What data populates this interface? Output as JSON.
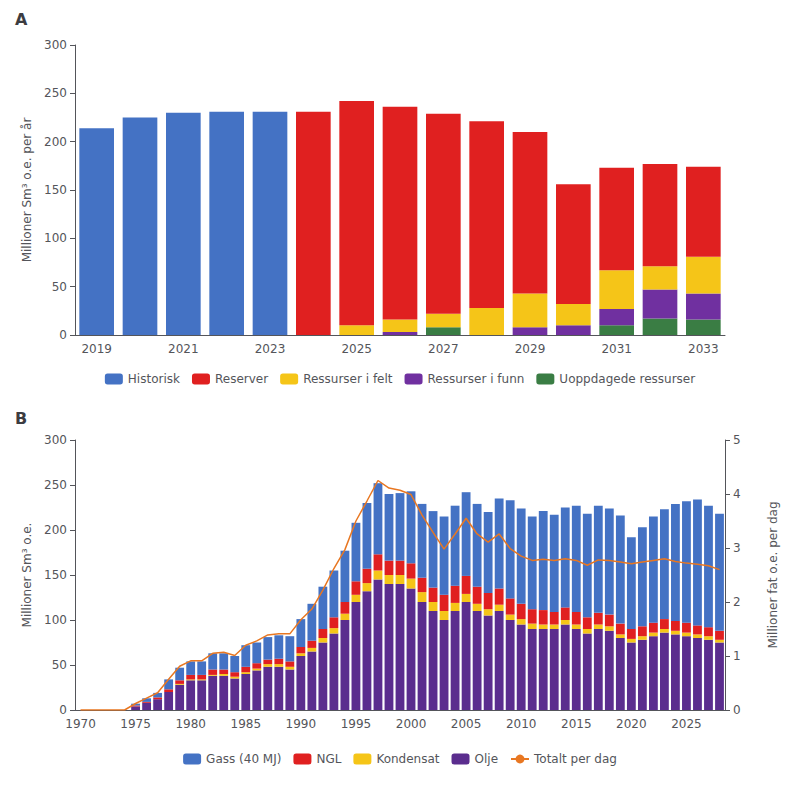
{
  "chart_data": [
    {
      "type": "bar",
      "title": "A",
      "categories": [
        "2019",
        null,
        "2021",
        null,
        "2023",
        null,
        "2025",
        null,
        "2027",
        null,
        "2029",
        null,
        "2031",
        null,
        "2033"
      ],
      "series": [
        {
          "name": "Historisk",
          "color": "#4472C4",
          "values": [
            214,
            225,
            230,
            231,
            231,
            0,
            0,
            0,
            0,
            0,
            0,
            0,
            0,
            0,
            0
          ]
        },
        {
          "name": "Reserver",
          "color": "#E02020",
          "values": [
            0,
            0,
            0,
            0,
            0,
            231,
            232,
            220,
            207,
            193,
            167,
            124,
            106,
            106,
            93
          ]
        },
        {
          "name": "Ressurser i felt",
          "color": "#F5C518",
          "values": [
            0,
            0,
            0,
            0,
            0,
            0,
            10,
            13,
            14,
            28,
            35,
            22,
            40,
            24,
            38
          ]
        },
        {
          "name": "Ressurser i funn",
          "color": "#7030A0",
          "values": [
            0,
            0,
            0,
            0,
            0,
            0,
            0,
            3,
            0,
            0,
            8,
            10,
            17,
            30,
            27
          ]
        },
        {
          "name": "Uoppdagede ressurser",
          "color": "#3A7D44",
          "values": [
            0,
            0,
            0,
            0,
            0,
            0,
            0,
            0,
            8,
            0,
            0,
            0,
            10,
            17,
            16
          ]
        }
      ],
      "ylabel": "Millioner Sm³ o.e. per år",
      "ylim": [
        0,
        300
      ],
      "yticks": [
        0,
        50,
        100,
        150,
        200,
        250,
        300
      ],
      "stacked": true,
      "legend": "bottom",
      "grid": false
    },
    {
      "type": "bar",
      "title": "B",
      "categories": [
        "1970",
        null,
        null,
        null,
        null,
        "1975",
        null,
        null,
        null,
        null,
        "1980",
        null,
        null,
        null,
        null,
        "1985",
        null,
        null,
        null,
        null,
        "1990",
        null,
        null,
        null,
        null,
        "1995",
        null,
        null,
        null,
        null,
        "2000",
        null,
        null,
        null,
        null,
        "2005",
        null,
        null,
        null,
        null,
        "2010",
        null,
        null,
        null,
        null,
        "2015",
        null,
        null,
        null,
        null,
        "2020",
        null,
        null,
        null,
        null,
        "2025",
        null,
        null,
        null
      ],
      "series": [
        {
          "name": "Gass (40 MJ)",
          "color": "#4472C4",
          "values": [
            0,
            0,
            0,
            0,
            0,
            2,
            4,
            5,
            11,
            14,
            15,
            15,
            18,
            18,
            18,
            24,
            23,
            25,
            26,
            28,
            31,
            41,
            47,
            52,
            57,
            65,
            73,
            79,
            74,
            75,
            80,
            82,
            85,
            87,
            89,
            93,
            92,
            90,
            100,
            109,
            106,
            103,
            110,
            108,
            111,
            118,
            115,
            119,
            118,
            120,
            102,
            110,
            118,
            122,
            130,
            135,
            140,
            135,
            130
          ]
        },
        {
          "name": "NGL",
          "color": "#E02020",
          "values": [
            0,
            0,
            0,
            0,
            0,
            1,
            1,
            2,
            3,
            4,
            5,
            5,
            6,
            5,
            5,
            6,
            6,
            5,
            6,
            6,
            7,
            8,
            10,
            12,
            13,
            15,
            16,
            18,
            16,
            16,
            17,
            16,
            16,
            18,
            19,
            20,
            19,
            18,
            18,
            18,
            17,
            16,
            16,
            14,
            14,
            14,
            13,
            13,
            13,
            12,
            11,
            11,
            11,
            11,
            11,
            11,
            10,
            10,
            10
          ]
        },
        {
          "name": "Kondensat",
          "color": "#F5C518",
          "values": [
            0,
            0,
            0,
            0,
            0,
            0,
            0,
            0,
            0,
            1,
            1,
            1,
            1,
            2,
            2,
            2,
            2,
            3,
            3,
            3,
            3,
            4,
            5,
            6,
            7,
            8,
            9,
            10,
            10,
            10,
            11,
            11,
            10,
            10,
            9,
            9,
            8,
            7,
            7,
            6,
            6,
            6,
            5,
            5,
            5,
            5,
            5,
            5,
            5,
            4,
            4,
            4,
            4,
            4,
            4,
            4,
            4,
            4,
            3
          ]
        },
        {
          "name": "Olje",
          "color": "#5B2D8E",
          "values": [
            0,
            0,
            0,
            0,
            0,
            4,
            8,
            12,
            20,
            28,
            33,
            33,
            38,
            38,
            35,
            40,
            44,
            48,
            48,
            45,
            60,
            65,
            75,
            85,
            100,
            120,
            132,
            145,
            140,
            140,
            135,
            120,
            110,
            100,
            110,
            120,
            110,
            105,
            110,
            100,
            95,
            90,
            90,
            90,
            95,
            90,
            85,
            90,
            88,
            80,
            75,
            78,
            82,
            86,
            84,
            82,
            80,
            78,
            75
          ]
        },
        {
          "name": "Totalt per dag",
          "type": "line",
          "axis": "y2",
          "color": "#E87722",
          "values": [
            0.0,
            0.0,
            0.0,
            0.0,
            0.0,
            0.12,
            0.22,
            0.32,
            0.57,
            0.81,
            0.91,
            0.91,
            1.05,
            1.07,
            1.01,
            1.2,
            1.28,
            1.39,
            1.41,
            1.41,
            1.67,
            1.87,
            2.22,
            2.62,
            2.97,
            3.5,
            3.87,
            4.25,
            4.11,
            4.07,
            3.99,
            3.61,
            3.29,
            2.98,
            3.26,
            3.55,
            3.26,
            3.11,
            3.26,
            2.99,
            2.85,
            2.77,
            2.79,
            2.77,
            2.8,
            2.77,
            2.68,
            2.78,
            2.77,
            2.74,
            2.71,
            2.74,
            2.77,
            2.8,
            2.75,
            2.72,
            2.7,
            2.67,
            2.6
          ]
        }
      ],
      "ylabel": "Millioner Sm³ o.e.",
      "ylim": [
        0,
        300
      ],
      "yticks": [
        0,
        50,
        100,
        150,
        200,
        250,
        300
      ],
      "y2label": "Millioner fat o.e. per dag",
      "y2lim": [
        0,
        5
      ],
      "y2ticks": [
        0,
        1,
        2,
        3,
        4,
        5
      ],
      "stacked": true,
      "legend": "bottom",
      "grid": false
    }
  ]
}
